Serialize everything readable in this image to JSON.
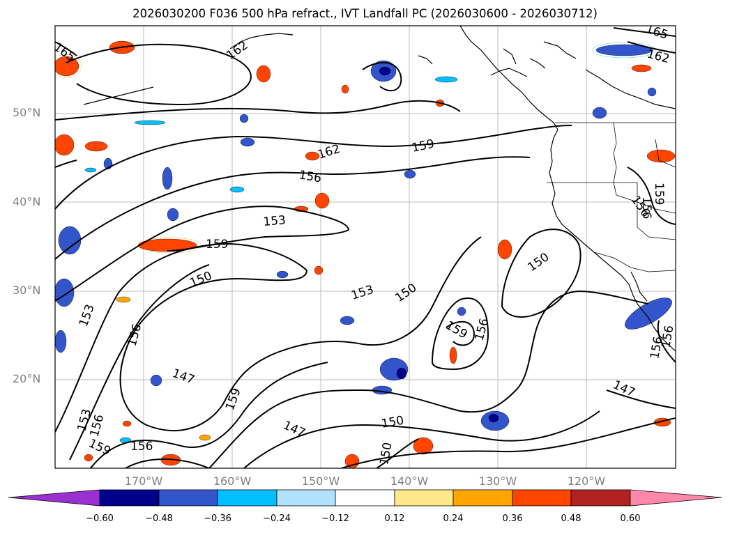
{
  "title": "2026030200 F036 500 hPa refract., IVT Landfall PC (2026030600 - 2026030712)",
  "lat_labels": [
    "50°N",
    "40°N",
    "30°N",
    "20°N"
  ],
  "lon_labels": [
    "170°W",
    "160°W",
    "150°W",
    "140°W",
    "130°W",
    "120°W"
  ],
  "contour_labels": [
    "165",
    "162",
    "165",
    "162",
    "162",
    "159",
    "156",
    "153",
    "159",
    "150",
    "153",
    "150",
    "150",
    "159",
    "156",
    "156",
    "153",
    "156",
    "147",
    "159",
    "147",
    "150",
    "150",
    "147",
    "153",
    "156",
    "159",
    "156",
    "156",
    "159",
    "156",
    "156"
  ],
  "colorbar": {
    "ticks": [
      "−0.60",
      "−0.48",
      "−0.36",
      "−0.24",
      "−0.12",
      "0.12",
      "0.24",
      "0.36",
      "0.48",
      "0.60"
    ],
    "colors": [
      "#9b30d0",
      "#00008b",
      "#3355cc",
      "#00bfff",
      "#b0e2ff",
      "#ffffff",
      "#ffe98a",
      "#ffa500",
      "#ff4500",
      "#b22222",
      "#ff88aa"
    ]
  },
  "colors": {
    "ocean": "#ffffff",
    "land_outline": "#000000",
    "grid": "#bbbbbb"
  }
}
